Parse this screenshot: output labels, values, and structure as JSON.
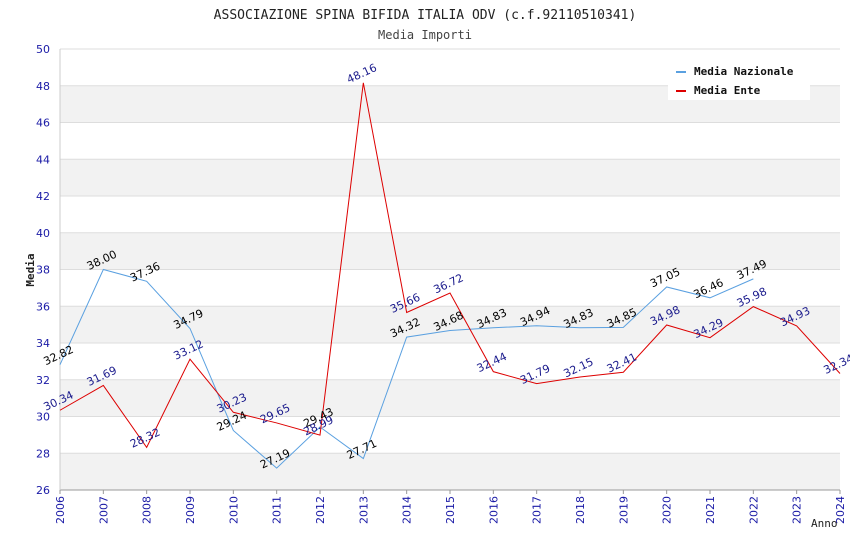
{
  "chart_data": {
    "type": "line",
    "title": "ASSOCIAZIONE SPINA BIFIDA ITALIA ODV (c.f.92110510341)",
    "subtitle": "Media Importi",
    "xlabel": "Anno",
    "ylabel": "Media",
    "ylim": [
      26,
      50
    ],
    "yticks": [
      26,
      28,
      30,
      32,
      34,
      36,
      38,
      40,
      42,
      44,
      46,
      48,
      50
    ],
    "categories": [
      "2006",
      "2007",
      "2008",
      "2009",
      "2010",
      "2011",
      "2012",
      "2013",
      "2014",
      "2015",
      "2016",
      "2017",
      "2018",
      "2019",
      "2020",
      "2021",
      "2022",
      "2023",
      "2024"
    ],
    "legend_position": "top-right",
    "series": [
      {
        "name": "Media Nazionale",
        "color": "#5aa0e0",
        "label_color": "#000000",
        "values": [
          32.82,
          38.0,
          37.36,
          34.79,
          29.24,
          27.19,
          29.43,
          27.71,
          34.32,
          34.68,
          34.83,
          34.94,
          34.83,
          34.85,
          37.05,
          36.46,
          37.49,
          null,
          null
        ],
        "labels": [
          "32.82",
          "38.00",
          "37.36",
          "34.79",
          "29.24",
          "27.19",
          "29.43",
          "27.71",
          "34.32",
          "34.68",
          "34.83",
          "34.94",
          "34.83",
          "34.85",
          "37.05",
          "36.46",
          "37.49",
          "",
          ""
        ]
      },
      {
        "name": "Media Ente",
        "color": "#dd0000",
        "label_color": "#1a1a8c",
        "values": [
          30.34,
          31.69,
          28.32,
          33.12,
          30.23,
          29.65,
          28.99,
          48.16,
          35.66,
          36.72,
          32.44,
          31.79,
          32.15,
          32.41,
          34.98,
          34.29,
          35.98,
          34.93,
          32.34
        ],
        "labels": [
          "30.34",
          "31.69",
          "28.32",
          "33.12",
          "30.23",
          "29.65",
          "28.99",
          "48.16",
          "35.66",
          "36.72",
          "32.44",
          "31.79",
          "32.15",
          "32.41",
          "34.98",
          "34.29",
          "35.98",
          "34.93",
          "32.34"
        ]
      }
    ]
  }
}
